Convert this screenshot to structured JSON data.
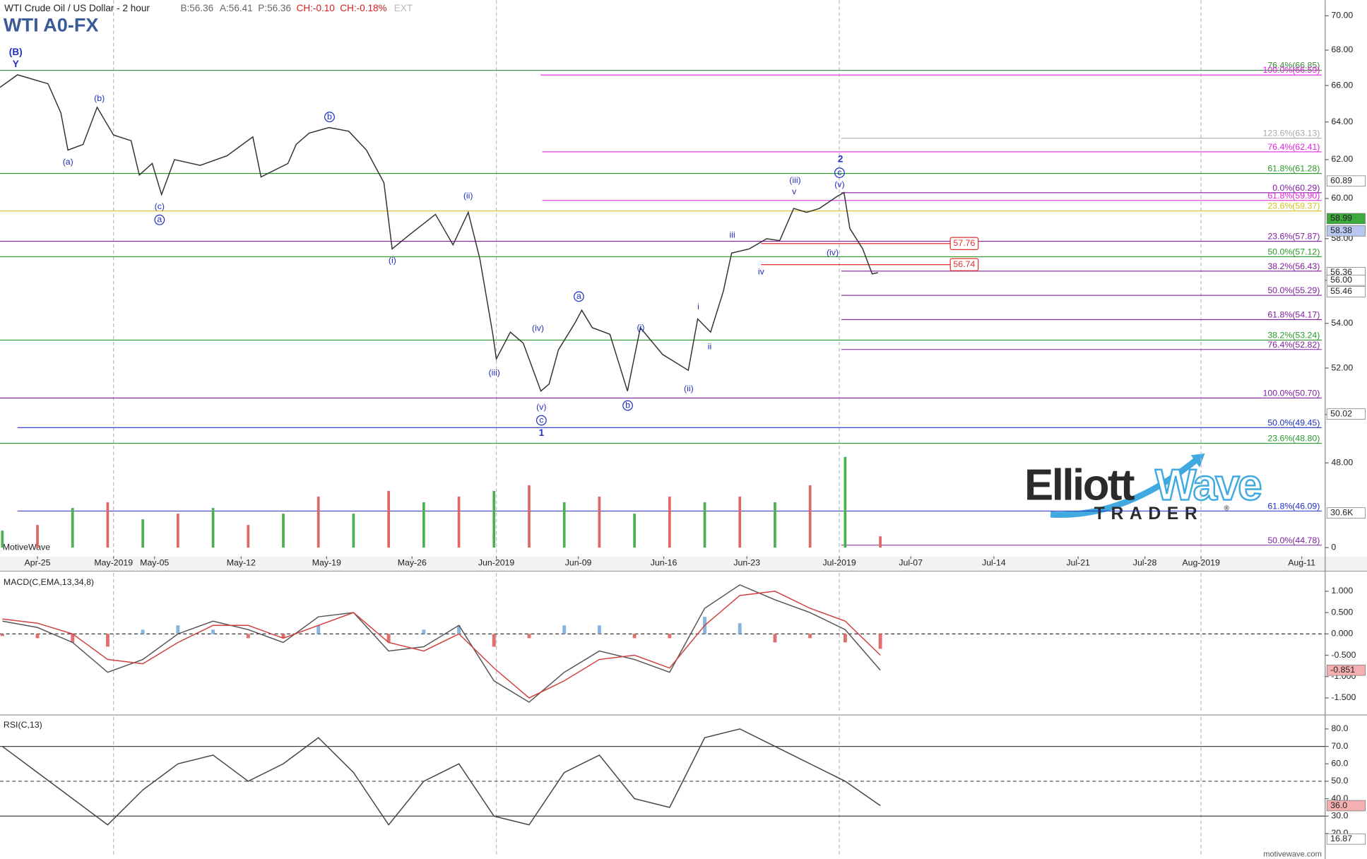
{
  "quote": [
    {
      "text": "B:56.36",
      "color": "#666"
    },
    {
      "text": "A:56.41",
      "color": "#666"
    },
    {
      "text": "P:56.36",
      "color": "#666"
    },
    {
      "text": "CH:-0.10",
      "color": "#d02020"
    },
    {
      "text": "CH:-0.18%",
      "color": "#d02020"
    },
    {
      "text": "EXT",
      "color": "#bbb"
    }
  ],
  "brand": {
    "left": "MotiveWave",
    "right": "motivewave.com",
    "logo_a": "Elliott",
    "logo_b": "Wave",
    "logo_c": "TRADER",
    "logo_d": "®"
  },
  "chart_data": [
    {
      "type": "line",
      "title": "WTI A0-FX",
      "subtitle": "WTI Crude Oil / US Dollar - 2 hour",
      "log_scale": true,
      "color": "#333333",
      "x": [
        -3.2,
        -1.7,
        0.9,
        2.0,
        2.6,
        3.9,
        5.1,
        6.5,
        8.0,
        8.7,
        9.8,
        10.6,
        11.7,
        13.9,
        16.2,
        18.4,
        19.1,
        21.4,
        22.1,
        23.2,
        24.9,
        26.6,
        28.1,
        29.6,
        30.3,
        31.8,
        34.0,
        35.5,
        36.8,
        37.8,
        38.9,
        39.2,
        40.4,
        41.5,
        43.0,
        43.7,
        44.5,
        45.9,
        46.5,
        47.4,
        48.9,
        50.4,
        51.5,
        53.4,
        55.6,
        56.4,
        57.5,
        58.6,
        59.3,
        60.8,
        62.3,
        63.4,
        64.6,
        65.7,
        66.8,
        68.3,
        68.9,
        69.4,
        70.5,
        71.3,
        71.8
      ],
      "values": [
        65.9,
        66.6,
        66.1,
        64.5,
        62.5,
        62.8,
        64.8,
        63.3,
        63.0,
        61.2,
        61.8,
        60.2,
        62.0,
        61.7,
        62.2,
        63.2,
        61.1,
        61.8,
        62.8,
        63.4,
        63.7,
        63.5,
        62.5,
        60.8,
        57.5,
        58.2,
        59.2,
        57.7,
        59.3,
        57.0,
        53.5,
        52.4,
        53.6,
        53.1,
        51.0,
        51.3,
        52.8,
        54.0,
        54.6,
        53.8,
        53.5,
        51.0,
        53.8,
        52.6,
        51.9,
        54.2,
        53.6,
        55.5,
        57.3,
        57.5,
        58.0,
        57.9,
        59.5,
        59.3,
        59.5,
        60.1,
        60.3,
        58.5,
        57.5,
        56.3,
        56.36
      ],
      "xlim": [
        -3.2,
        110
      ],
      "ylim": [
        44.36,
        70.93
      ],
      "yticks": [
        {
          "value": 48,
          "label": "48.00"
        },
        {
          "value": 50,
          "label": "50.00"
        },
        {
          "value": 52,
          "label": "52.00"
        },
        {
          "value": 54,
          "label": "54.00"
        },
        {
          "value": 56,
          "label": "56.00"
        },
        {
          "value": 58,
          "label": "58.00"
        },
        {
          "value": 60,
          "label": "60.00"
        },
        {
          "value": 62,
          "label": "62.00"
        },
        {
          "value": 64,
          "label": "64.00"
        },
        {
          "value": 66,
          "label": "66.00"
        },
        {
          "value": 68,
          "label": "68.00"
        },
        {
          "value": 70,
          "label": "70.00"
        }
      ],
      "xticks": [
        {
          "value": 0,
          "label": "Apr-25"
        },
        {
          "value": 6.5,
          "label": "May-2019"
        },
        {
          "value": 10.0,
          "label": "May-05"
        },
        {
          "value": 17.4,
          "label": "May-12"
        },
        {
          "value": 24.7,
          "label": "May-19"
        },
        {
          "value": 32.0,
          "label": "May-26"
        },
        {
          "value": 39.2,
          "label": "Jun-2019"
        },
        {
          "value": 46.2,
          "label": "Jun-09"
        },
        {
          "value": 53.5,
          "label": "Jun-16"
        },
        {
          "value": 60.6,
          "label": "Jun-23"
        },
        {
          "value": 68.5,
          "label": "Jul-2019"
        },
        {
          "value": 74.6,
          "label": "Jul-07"
        },
        {
          "value": 81.7,
          "label": "Jul-14"
        },
        {
          "value": 88.9,
          "label": "Jul-21"
        },
        {
          "value": 94.6,
          "label": "Jul-28"
        },
        {
          "value": 99.4,
          "label": "Aug-2019"
        },
        {
          "value": 108.0,
          "label": "Aug-11"
        }
      ],
      "levels": [
        {
          "label": "76.4%(66.85)",
          "price": 66.85,
          "color": "#3a8a3a"
        },
        {
          "label": "100.0%(66.59)",
          "price": 66.59,
          "color": "#e020e0"
        },
        {
          "label": "123.6%(63.13)",
          "price": 63.13,
          "color": "#aaaaaa"
        },
        {
          "label": "76.4%(62.41)",
          "price": 62.41,
          "color": "#e020e0"
        },
        {
          "label": "61.8%(61.28)",
          "price": 61.28,
          "color": "#2a9a2a"
        },
        {
          "label": "0.0%(60.29)",
          "price": 60.29,
          "color": "#8020a0"
        },
        {
          "label": "61.8%(59.90)",
          "price": 59.9,
          "color": "#e020e0"
        },
        {
          "label": "23.6%(59.37)",
          "price": 59.37,
          "color": "#d8c020"
        },
        {
          "label": "23.6%(57.87)",
          "price": 57.87,
          "color": "#8020a0"
        },
        {
          "label": "50.0%(57.12)",
          "price": 57.12,
          "color": "#2a9a2a"
        },
        {
          "label": "38.2%(56.43)",
          "price": 56.43,
          "color": "#8020a0"
        },
        {
          "label": "50.0%(55.29)",
          "price": 55.29,
          "color": "#8020a0"
        },
        {
          "label": "61.8%(54.17)",
          "price": 54.17,
          "color": "#8020a0"
        },
        {
          "label": "38.2%(53.24)",
          "price": 53.24,
          "color": "#2a9a2a"
        },
        {
          "label": "76.4%(52.82)",
          "price": 52.82,
          "color": "#8020a0"
        },
        {
          "label": "100.0%(50.70)",
          "price": 50.7,
          "color": "#8020a0"
        },
        {
          "label": "50.0%(49.45)",
          "price": 49.45,
          "color": "#2030c0"
        },
        {
          "label": "23.6%(48.80)",
          "price": 48.8,
          "color": "#2a9a2a"
        },
        {
          "label": "61.8%(46.09)",
          "price": 46.09,
          "color": "#2030c0"
        },
        {
          "label": "50.0%(44.78)",
          "price": 44.78,
          "color": "#8020a0"
        }
      ],
      "price_boxes": [
        57.76,
        56.74
      ],
      "tags": [
        {
          "value": 60.89,
          "color": "#ffffff"
        },
        {
          "value": 58.99,
          "color": "#3caa3c"
        },
        {
          "value": 58.38,
          "color": "#b8c8f0"
        },
        {
          "value": 56.36,
          "color": "#ffffff"
        },
        {
          "value": 56,
          "label": "56.00",
          "color": "#ffffff"
        },
        {
          "value": 55.46,
          "color": "#ffffff"
        },
        {
          "value": 50.02,
          "color": "#ffffff"
        }
      ],
      "waves": [
        "(B)",
        "Y",
        "(a)",
        "(b)",
        "(c)",
        "a",
        "b",
        "(i)",
        "(ii)",
        "(iii)",
        "(iv)",
        "(v)",
        "c",
        "1",
        "a",
        "(i)",
        "b",
        "(ii)",
        "i",
        "ii",
        "iii",
        "iv",
        "(iii)",
        "v",
        "2",
        "c",
        "(v)",
        "(iv)"
      ]
    },
    {
      "type": "bar",
      "colors": [
        "#4caf50",
        "#e06666"
      ],
      "x": [
        -3,
        0,
        3,
        6,
        9,
        12,
        15,
        18,
        21,
        24,
        27,
        30,
        33,
        36,
        39,
        42,
        45,
        48,
        51,
        54,
        57,
        60,
        63,
        66,
        69,
        72
      ],
      "values": [
        15,
        20,
        35,
        40,
        25,
        30,
        35,
        20,
        30,
        45,
        30,
        50,
        40,
        45,
        50,
        55,
        40,
        45,
        30,
        45,
        40,
        45,
        40,
        55,
        80,
        10
      ],
      "ylim": [
        0,
        100
      ],
      "yticks": [
        0
      ],
      "tags": [
        {
          "value": 30.6,
          "label": "30.6K",
          "color": "#ffffff"
        }
      ]
    },
    {
      "type": "line",
      "title": "MACD(C,EMA,13,34,8)",
      "x": [
        -3,
        0,
        3,
        6,
        9,
        12,
        15,
        18,
        21,
        24,
        27,
        30,
        33,
        36,
        39,
        42,
        45,
        48,
        51,
        54,
        57,
        60,
        63,
        66,
        69,
        72
      ],
      "series": [
        {
          "color": "#555555",
          "values": [
            0.3,
            0.15,
            -0.2,
            -0.9,
            -0.6,
            0.0,
            0.3,
            0.1,
            -0.2,
            0.4,
            0.5,
            -0.4,
            -0.3,
            0.2,
            -1.1,
            -1.6,
            -0.9,
            -0.4,
            -0.6,
            -0.9,
            0.6,
            1.15,
            0.8,
            0.5,
            0.1,
            -0.85
          ]
        },
        {
          "color": "#d04040",
          "values": [
            0.35,
            0.25,
            0.0,
            -0.6,
            -0.7,
            -0.2,
            0.2,
            0.2,
            -0.1,
            0.2,
            0.5,
            -0.2,
            -0.4,
            0.0,
            -0.8,
            -1.5,
            -1.1,
            -0.6,
            -0.5,
            -0.8,
            0.2,
            0.9,
            1.0,
            0.6,
            0.3,
            -0.5
          ]
        }
      ],
      "histogram": {
        "colors": [
          "#8ab4e0",
          "#e07070"
        ],
        "values": [
          -0.05,
          -0.1,
          -0.2,
          -0.3,
          0.1,
          0.2,
          0.1,
          -0.1,
          -0.1,
          0.2,
          0.0,
          -0.2,
          0.1,
          0.2,
          -0.3,
          -0.1,
          0.2,
          0.2,
          -0.1,
          -0.1,
          0.4,
          0.25,
          -0.2,
          -0.1,
          -0.2,
          -0.35
        ]
      },
      "ylim": [
        -1.86,
        1.43
      ],
      "yticks": [
        {
          "value": 1,
          "label": "1.000"
        },
        {
          "value": 0.5,
          "label": "0.500"
        },
        {
          "value": 0,
          "label": "0.000"
        },
        {
          "value": -0.5,
          "label": "-0.500"
        },
        {
          "value": -1,
          "label": "-1.000"
        },
        {
          "value": -1.5,
          "label": "-1.500"
        }
      ],
      "zero_line": true,
      "tags": [
        {
          "value": -0.851,
          "color": "#f4b0b0"
        }
      ]
    },
    {
      "type": "line",
      "title": "RSI(C,13)",
      "color": "#444444",
      "x": [
        -3,
        0,
        3,
        6,
        9,
        12,
        15,
        18,
        21,
        24,
        27,
        30,
        33,
        36,
        39,
        42,
        45,
        48,
        51,
        54,
        57,
        60,
        63,
        66,
        69,
        72
      ],
      "values": [
        70,
        55,
        40,
        25,
        45,
        60,
        65,
        50,
        60,
        75,
        55,
        25,
        50,
        60,
        30,
        25,
        55,
        65,
        40,
        35,
        75,
        80,
        70,
        60,
        50,
        36
      ],
      "ylim": [
        8,
        87
      ],
      "yticks": [
        {
          "value": 80,
          "label": "80.0"
        },
        {
          "value": 70,
          "label": "70.0"
        },
        {
          "value": 60,
          "label": "60.0"
        },
        {
          "value": 50,
          "label": "50.0"
        },
        {
          "value": 40,
          "label": "40.0"
        },
        {
          "value": 30,
          "label": "30.0"
        },
        {
          "value": 20,
          "label": "20.0"
        }
      ],
      "bands": [
        70,
        30
      ],
      "mid": 50,
      "tags": [
        {
          "value": 36,
          "label": "36.0",
          "color": "#f4b0b0"
        },
        {
          "value": 16.87,
          "color": "#ffffff"
        }
      ]
    }
  ]
}
